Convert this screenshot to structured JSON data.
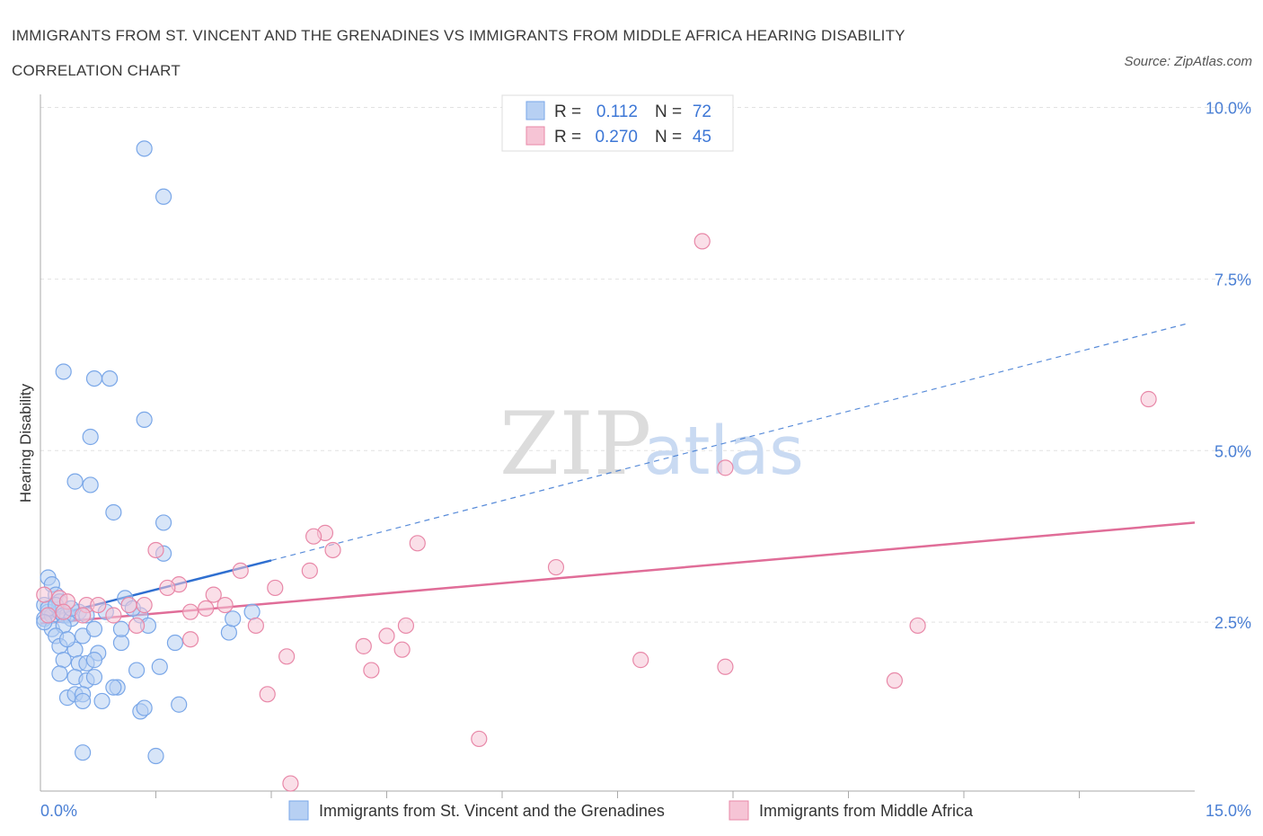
{
  "title": "IMMIGRANTS FROM ST. VINCENT AND THE GRENADINES VS IMMIGRANTS FROM MIDDLE AFRICA HEARING DISABILITY CORRELATION CHART",
  "source": "Source: ZipAtlas.com",
  "watermark": {
    "zip": "ZIP",
    "atlas": "atlas"
  },
  "colors": {
    "blue": "#7aa7e8",
    "blue_fill": "#b7d0f3",
    "blue_line": "#2f6fd0",
    "pink": "#e888a8",
    "pink_fill": "#f6c4d5",
    "pink_line": "#e06d98",
    "tick_text": "#4a7fd4"
  },
  "legend": {
    "r_label": "R =",
    "n_label": "N =",
    "series": [
      {
        "r": "0.112",
        "n": "72"
      },
      {
        "r": "0.270",
        "n": "45"
      }
    ]
  },
  "chart_data": {
    "type": "scatter",
    "ylabel": "Hearing Disability",
    "x_ticks": [
      "0.0%",
      "15.0%"
    ],
    "y_ticks": [
      "2.5%",
      "5.0%",
      "7.5%",
      "10.0%"
    ],
    "y_tick_values": [
      2.5,
      5.0,
      7.5,
      10.0
    ],
    "xlim": [
      0,
      15
    ],
    "ylim": [
      0,
      10
    ],
    "grid": true,
    "series": [
      {
        "name": "Immigrants from St. Vincent and the Grenadines",
        "color": "blue",
        "trend": {
          "x0": 0,
          "y0": 2.55,
          "x1": 3.0,
          "y1": 3.4,
          "dashed_to_x": 14.9,
          "dashed_to_y": 6.85
        },
        "points": [
          [
            1.35,
            9.4
          ],
          [
            1.6,
            8.7
          ],
          [
            0.3,
            6.15
          ],
          [
            0.7,
            6.05
          ],
          [
            0.9,
            6.05
          ],
          [
            1.35,
            5.45
          ],
          [
            0.65,
            5.2
          ],
          [
            0.45,
            4.55
          ],
          [
            0.65,
            4.5
          ],
          [
            0.95,
            4.1
          ],
          [
            1.6,
            3.95
          ],
          [
            1.6,
            3.5
          ],
          [
            0.1,
            3.15
          ],
          [
            0.15,
            3.05
          ],
          [
            0.05,
            2.75
          ],
          [
            0.1,
            2.65
          ],
          [
            0.2,
            2.9
          ],
          [
            0.25,
            2.8
          ],
          [
            0.05,
            2.55
          ],
          [
            0.15,
            2.6
          ],
          [
            0.25,
            2.65
          ],
          [
            0.35,
            2.6
          ],
          [
            0.1,
            2.7
          ],
          [
            0.2,
            2.75
          ],
          [
            0.3,
            2.6
          ],
          [
            0.4,
            2.55
          ],
          [
            0.5,
            2.65
          ],
          [
            0.15,
            2.4
          ],
          [
            0.3,
            2.45
          ],
          [
            0.2,
            2.3
          ],
          [
            0.25,
            2.15
          ],
          [
            0.55,
            2.3
          ],
          [
            0.45,
            2.1
          ],
          [
            0.75,
            2.05
          ],
          [
            1.05,
            2.2
          ],
          [
            0.3,
            1.95
          ],
          [
            0.5,
            1.9
          ],
          [
            0.6,
            1.9
          ],
          [
            0.7,
            1.95
          ],
          [
            0.25,
            1.75
          ],
          [
            0.45,
            1.7
          ],
          [
            0.6,
            1.65
          ],
          [
            0.7,
            1.7
          ],
          [
            1.25,
            1.8
          ],
          [
            1.55,
            1.85
          ],
          [
            0.35,
            1.4
          ],
          [
            0.45,
            1.45
          ],
          [
            0.55,
            1.45
          ],
          [
            0.55,
            1.35
          ],
          [
            0.8,
            1.35
          ],
          [
            1.0,
            1.55
          ],
          [
            0.95,
            1.55
          ],
          [
            1.3,
            1.2
          ],
          [
            1.35,
            1.25
          ],
          [
            1.8,
            1.3
          ],
          [
            0.55,
            0.6
          ],
          [
            1.5,
            0.55
          ],
          [
            1.1,
            2.85
          ],
          [
            1.05,
            2.4
          ],
          [
            1.3,
            2.6
          ],
          [
            1.4,
            2.45
          ],
          [
            1.75,
            2.2
          ],
          [
            2.45,
            2.35
          ],
          [
            2.5,
            2.55
          ],
          [
            2.75,
            2.65
          ],
          [
            0.6,
            2.6
          ],
          [
            0.05,
            2.5
          ],
          [
            0.4,
            2.7
          ],
          [
            0.85,
            2.65
          ],
          [
            0.7,
            2.4
          ],
          [
            1.2,
            2.7
          ],
          [
            0.35,
            2.25
          ]
        ]
      },
      {
        "name": "Immigrants from Middle Africa",
        "color": "pink",
        "trend": {
          "x0": 0,
          "y0": 2.48,
          "x1": 15.0,
          "y1": 3.95
        },
        "points": [
          [
            8.6,
            8.05
          ],
          [
            14.4,
            5.75
          ],
          [
            8.9,
            4.75
          ],
          [
            3.7,
            3.8
          ],
          [
            3.55,
            3.75
          ],
          [
            3.8,
            3.55
          ],
          [
            4.9,
            3.65
          ],
          [
            1.5,
            3.55
          ],
          [
            6.7,
            3.3
          ],
          [
            3.5,
            3.25
          ],
          [
            2.6,
            3.25
          ],
          [
            1.8,
            3.05
          ],
          [
            1.65,
            3.0
          ],
          [
            3.05,
            3.0
          ],
          [
            2.25,
            2.9
          ],
          [
            0.25,
            2.85
          ],
          [
            0.35,
            2.8
          ],
          [
            0.6,
            2.75
          ],
          [
            0.75,
            2.75
          ],
          [
            1.35,
            2.75
          ],
          [
            1.95,
            2.65
          ],
          [
            2.15,
            2.7
          ],
          [
            2.4,
            2.75
          ],
          [
            0.1,
            2.6
          ],
          [
            0.3,
            2.65
          ],
          [
            0.55,
            2.6
          ],
          [
            0.95,
            2.6
          ],
          [
            1.15,
            2.75
          ],
          [
            1.25,
            2.45
          ],
          [
            2.8,
            2.45
          ],
          [
            4.75,
            2.45
          ],
          [
            4.5,
            2.3
          ],
          [
            11.4,
            2.45
          ],
          [
            1.95,
            2.25
          ],
          [
            4.2,
            2.15
          ],
          [
            4.7,
            2.1
          ],
          [
            3.2,
            2.0
          ],
          [
            4.3,
            1.8
          ],
          [
            7.8,
            1.95
          ],
          [
            8.9,
            1.85
          ],
          [
            11.1,
            1.65
          ],
          [
            2.95,
            1.45
          ],
          [
            5.7,
            0.8
          ],
          [
            3.25,
            0.15
          ],
          [
            0.05,
            2.9
          ]
        ]
      }
    ]
  }
}
